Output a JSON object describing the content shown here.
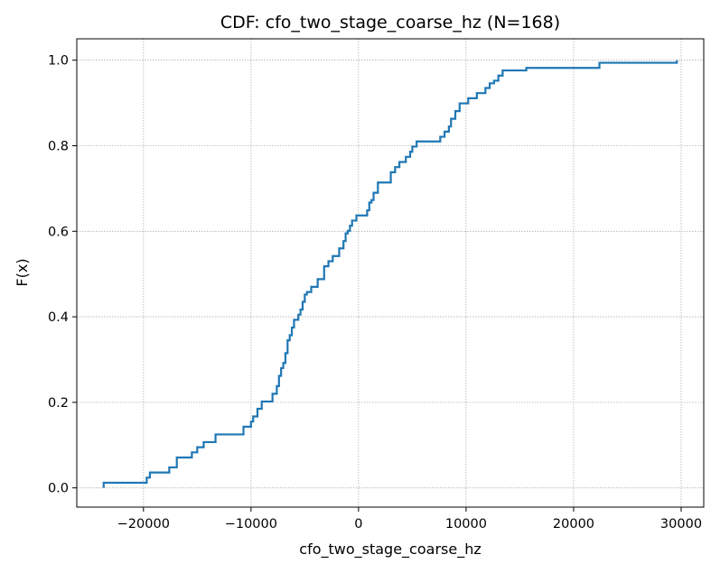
{
  "chart_data": {
    "type": "line",
    "title": "CDF: cfo_two_stage_coarse_hz  (N=168)",
    "xlabel": "cfo_two_stage_coarse_hz",
    "ylabel": "F(x)",
    "xlim": [
      -26200,
      32100
    ],
    "ylim": [
      -0.045,
      1.05
    ],
    "xticks": [
      -20000,
      -10000,
      0,
      10000,
      20000,
      30000
    ],
    "xtick_labels": [
      "−20000",
      "−10000",
      "0",
      "10000",
      "20000",
      "30000"
    ],
    "yticks": [
      0.0,
      0.2,
      0.4,
      0.6,
      0.8,
      1.0
    ],
    "ytick_labels": [
      "0.0",
      "0.2",
      "0.4",
      "0.6",
      "0.8",
      "1.0"
    ],
    "grid": true,
    "color": "#1f77b4",
    "series": [
      {
        "x": [
          -23700,
          -19700,
          -19400,
          -17600,
          -16900,
          -15500,
          -15000,
          -14400,
          -13300,
          -10700,
          -10000,
          -9800,
          -9400,
          -9000,
          -8000,
          -7600,
          -7400,
          -7200,
          -7000,
          -6800,
          -6600,
          -6400,
          -6200,
          -6000,
          -5600,
          -5400,
          -5200,
          -5000,
          -4800,
          -4400,
          -3800,
          -3200,
          -2800,
          -2400,
          -1800,
          -1400,
          -1200,
          -1000,
          -800,
          -600,
          -200,
          800,
          1000,
          1200,
          1400,
          1800,
          3000,
          3400,
          3800,
          4400,
          4800,
          5000,
          5400,
          7600,
          8000,
          8400,
          8600,
          9000,
          9400,
          10200,
          11000,
          11800,
          12200,
          12600,
          13000,
          13400,
          15600,
          22400,
          29600
        ],
        "y": [
          0.012,
          0.024,
          0.036,
          0.048,
          0.071,
          0.083,
          0.095,
          0.107,
          0.125,
          0.143,
          0.155,
          0.167,
          0.185,
          0.202,
          0.22,
          0.238,
          0.262,
          0.28,
          0.292,
          0.315,
          0.345,
          0.357,
          0.375,
          0.393,
          0.405,
          0.417,
          0.435,
          0.452,
          0.458,
          0.47,
          0.488,
          0.518,
          0.53,
          0.542,
          0.56,
          0.577,
          0.595,
          0.601,
          0.613,
          0.625,
          0.637,
          0.649,
          0.667,
          0.673,
          0.69,
          0.714,
          0.738,
          0.75,
          0.762,
          0.774,
          0.786,
          0.798,
          0.81,
          0.821,
          0.833,
          0.845,
          0.863,
          0.881,
          0.899,
          0.911,
          0.923,
          0.935,
          0.946,
          0.952,
          0.964,
          0.976,
          0.982,
          0.994,
          1.0
        ]
      }
    ]
  }
}
